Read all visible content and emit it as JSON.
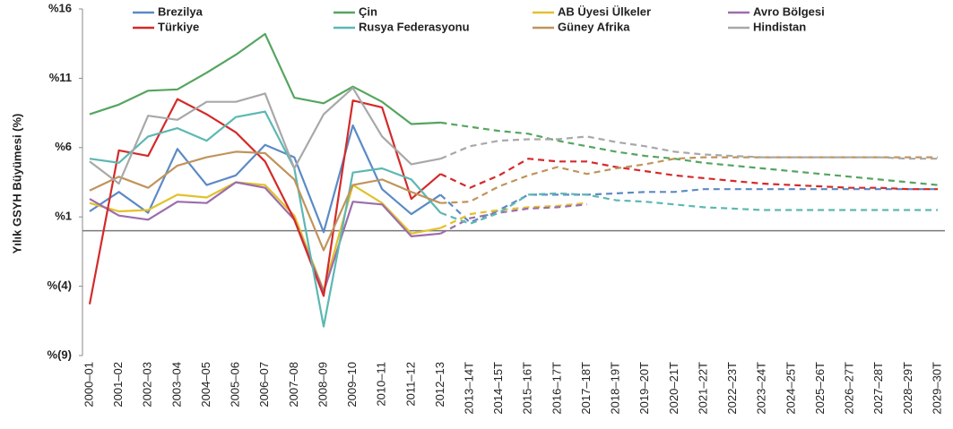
{
  "chart_data": {
    "type": "line",
    "y_label": "Yılık GSYH Büyümesi (%)",
    "categories": [
      "2000–01",
      "2001–02",
      "2002–03",
      "2003–04",
      "2004–05",
      "2005–06",
      "2006–07",
      "2007–08",
      "2008–09",
      "2009–10",
      "2010–11",
      "2011–12",
      "2012–13",
      "2013–14T",
      "2014–15T",
      "2015–16T",
      "2016–17T",
      "2017–18T",
      "2018–19T",
      "2019–20T",
      "2020–21T",
      "2021–22T",
      "2022–23T",
      "2023–24T",
      "2024–25T",
      "2025–26T",
      "2026–27T",
      "2027–28T",
      "2028–29T",
      "2029–30T"
    ],
    "dashed_from": "2012–13",
    "ylim": [
      -9,
      16
    ],
    "yticks": [
      {
        "value": 16,
        "label": "%16"
      },
      {
        "value": 11,
        "label": "%11"
      },
      {
        "value": 6,
        "label": "%6"
      },
      {
        "value": 1,
        "label": "%1"
      },
      {
        "value": -4,
        "label": "%(4)"
      },
      {
        "value": -9,
        "label": "%(9)"
      }
    ],
    "series": [
      {
        "name": "Brezilya",
        "color": "#5b8ac6",
        "values": [
          1.4,
          2.8,
          1.3,
          5.9,
          3.3,
          4.0,
          6.2,
          5.3,
          -0.1,
          7.6,
          3.0,
          1.2,
          2.6,
          0.6,
          1.5,
          2.6,
          2.6,
          2.6,
          2.7,
          2.8,
          2.8,
          3.0,
          3.0,
          3.0,
          3.0,
          3.0,
          3.0,
          3.0,
          3.0,
          3.0
        ]
      },
      {
        "name": "Çin",
        "color": "#55a55f",
        "values": [
          8.4,
          9.1,
          10.1,
          10.2,
          11.4,
          12.7,
          14.2,
          9.6,
          9.2,
          10.4,
          9.3,
          7.7,
          7.8,
          7.5,
          7.2,
          7.0,
          6.5,
          6.1,
          5.7,
          5.4,
          5.2,
          4.9,
          4.7,
          4.5,
          4.3,
          4.1,
          3.9,
          3.7,
          3.5,
          3.3
        ]
      },
      {
        "name": "AB Üyesi Ülkeler",
        "color": "#e3c12a",
        "values": [
          2.0,
          1.4,
          1.5,
          2.6,
          2.4,
          3.5,
          3.3,
          1.1,
          -4.3,
          3.3,
          2.0,
          -0.2,
          0.2,
          1.2,
          1.5,
          1.7,
          1.8,
          2.0,
          null,
          null,
          null,
          null,
          null,
          null,
          null,
          null,
          null,
          null,
          null,
          null
        ]
      },
      {
        "name": "Avro Bölgesi",
        "color": "#9b6dab",
        "values": [
          2.3,
          1.1,
          0.8,
          2.1,
          2.0,
          3.5,
          3.1,
          0.8,
          -4.4,
          2.1,
          1.9,
          -0.4,
          -0.2,
          0.9,
          1.3,
          1.6,
          1.7,
          1.9,
          null,
          null,
          null,
          null,
          null,
          null,
          null,
          null,
          null,
          null,
          null,
          null
        ]
      },
      {
        "name": "Türkiye",
        "color": "#d42a2a",
        "values": [
          -5.3,
          5.8,
          5.4,
          9.5,
          8.4,
          7.1,
          5.0,
          0.8,
          -4.7,
          9.4,
          8.9,
          2.3,
          4.1,
          3.1,
          4.0,
          5.2,
          5.0,
          5.0,
          4.6,
          4.3,
          4.0,
          3.8,
          3.6,
          3.4,
          3.3,
          3.2,
          3.1,
          3.1,
          3.0,
          3.0
        ]
      },
      {
        "name": "Rusya Federasyonu",
        "color": "#5cb8b2",
        "values": [
          5.2,
          4.9,
          6.8,
          7.4,
          6.5,
          8.2,
          8.6,
          4.5,
          -6.9,
          4.2,
          4.5,
          3.7,
          1.3,
          0.5,
          1.3,
          2.6,
          2.7,
          2.6,
          2.2,
          2.1,
          1.9,
          1.7,
          1.6,
          1.5,
          1.5,
          1.5,
          1.5,
          1.5,
          1.5,
          1.5
        ]
      },
      {
        "name": "Güney Afrika",
        "color": "#c0945c",
        "values": [
          2.9,
          3.9,
          3.1,
          4.7,
          5.3,
          5.7,
          5.6,
          3.7,
          -1.4,
          3.3,
          3.7,
          2.8,
          2.0,
          2.1,
          3.2,
          4.0,
          4.6,
          4.1,
          4.5,
          4.8,
          5.2,
          5.3,
          5.3,
          5.3,
          5.3,
          5.3,
          5.3,
          5.3,
          5.3,
          5.3
        ]
      },
      {
        "name": "Hindistan",
        "color": "#a8a8a8",
        "values": [
          5.0,
          3.4,
          8.3,
          8.0,
          9.3,
          9.3,
          9.9,
          4.5,
          8.4,
          10.3,
          6.8,
          4.8,
          5.2,
          6.1,
          6.5,
          6.6,
          6.6,
          6.8,
          6.4,
          6.1,
          5.7,
          5.5,
          5.4,
          5.3,
          5.3,
          5.3,
          5.3,
          5.3,
          5.2,
          5.2
        ]
      }
    ]
  }
}
